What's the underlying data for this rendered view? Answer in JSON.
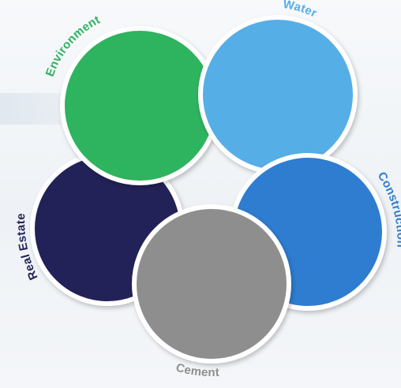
{
  "segments": [
    {
      "id": "environment",
      "label": "Environment",
      "color": "#2fb35e"
    },
    {
      "id": "water",
      "label": "Water",
      "color": "#56aee6"
    },
    {
      "id": "construction",
      "label": "Construction",
      "color": "#2f7dd0"
    },
    {
      "id": "cement",
      "label": "Cement",
      "color": "#8e8e8e"
    },
    {
      "id": "real-estate",
      "label": "Real Estate",
      "color": "#232459"
    }
  ]
}
